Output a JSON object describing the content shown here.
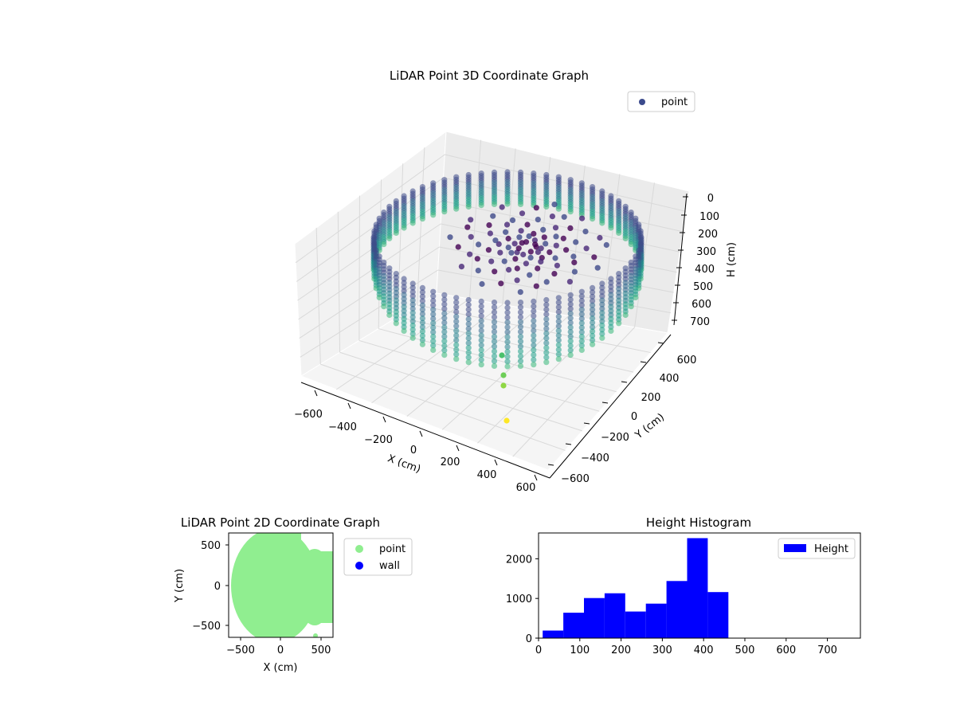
{
  "chart_data": [
    {
      "type": "scatter",
      "projection": "3d",
      "title": "LiDAR Point 3D Coordinate Graph",
      "xlabel": "X (cm)",
      "ylabel": "Y (cm)",
      "zlabel": "H (cm)",
      "xlim": [
        -650,
        650
      ],
      "ylim": [
        -650,
        650
      ],
      "zlim": [
        780,
        0
      ],
      "zaxis_inverted": true,
      "x_ticks": [
        "−600",
        "−400",
        "−200",
        "0",
        "200",
        "400",
        "600"
      ],
      "y_ticks": [
        "−600",
        "−400",
        "−200",
        "0",
        "200",
        "400",
        "600"
      ],
      "z_ticks": [
        "0",
        "100",
        "200",
        "300",
        "400",
        "500",
        "600",
        "700"
      ],
      "colormap": "viridis",
      "legend": {
        "position": "top-right",
        "entries": [
          {
            "label": "point",
            "color": "#3b4a8c"
          }
        ]
      },
      "grid": true
    },
    {
      "type": "scatter",
      "title": "LiDAR Point 2D Coordinate Graph",
      "xlabel": "X (cm)",
      "ylabel": "Y (cm)",
      "xlim": [
        -650,
        650
      ],
      "ylim": [
        -650,
        650
      ],
      "x_ticks": [
        "−500",
        "0",
        "500"
      ],
      "y_ticks": [
        "−500",
        "0",
        "500"
      ],
      "series": [
        {
          "name": "point",
          "color": "#90ee90"
        },
        {
          "name": "wall",
          "color": "#0000ff"
        }
      ],
      "legend": {
        "position": "outside-right"
      }
    },
    {
      "type": "bar",
      "subtype": "histogram",
      "title": "Height Histogram",
      "xlim": [
        0,
        780
      ],
      "ylim": [
        0,
        2650
      ],
      "x_ticks": [
        "0",
        "100",
        "200",
        "300",
        "400",
        "500",
        "600",
        "700"
      ],
      "y_ticks": [
        "0",
        "1000",
        "2000"
      ],
      "bin_edges": [
        10,
        60,
        110,
        160,
        210,
        260,
        310,
        360,
        410,
        460
      ],
      "values": [
        190,
        640,
        1010,
        1130,
        670,
        870,
        1440,
        2520,
        1160
      ],
      "color": "#0000ff",
      "legend": {
        "position": "top-right",
        "entries": [
          {
            "label": "Height",
            "color": "#0000ff"
          }
        ]
      }
    }
  ]
}
